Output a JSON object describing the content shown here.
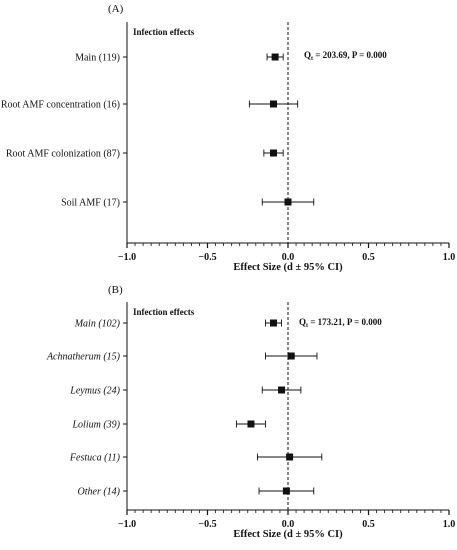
{
  "chart_data": [
    {
      "type": "scatter",
      "panel": "(A)",
      "title": "Infection effects",
      "xlabel": "Effect Size (d ± 95% CI)",
      "xlim": [
        -1.0,
        1.0
      ],
      "xticks": [
        "−1.0",
        "−0.5",
        "0.0",
        "0.5",
        "1.0"
      ],
      "xtick_values": [
        -1.0,
        -0.5,
        0.0,
        0.5,
        1.0
      ],
      "reference_line": 0.0,
      "annotation": {
        "q": "Q",
        "sub": "t",
        "text": " = 203.69, P = 0.000"
      },
      "rows": [
        {
          "label": "Main (119)",
          "italic": false,
          "d": -0.08,
          "lo": -0.13,
          "hi": -0.03
        },
        {
          "label": "Root AMF concentration (16)",
          "italic": false,
          "d": -0.09,
          "lo": -0.24,
          "hi": 0.06
        },
        {
          "label": "Root AMF colonization (87)",
          "italic": false,
          "d": -0.09,
          "lo": -0.15,
          "hi": -0.03
        },
        {
          "label": "Soil AMF (17)",
          "italic": false,
          "d": 0.0,
          "lo": -0.16,
          "hi": 0.16
        }
      ]
    },
    {
      "type": "scatter",
      "panel": "(B)",
      "title": "Infection effects",
      "xlabel": "Effect Size (d ± 95% CI)",
      "xlim": [
        -1.0,
        1.0
      ],
      "xticks": [
        "−1.0",
        "−0.5",
        "0.0",
        "0.5",
        "1.0"
      ],
      "xtick_values": [
        -1.0,
        -0.5,
        0.0,
        0.5,
        1.0
      ],
      "reference_line": 0.0,
      "annotation": {
        "q": "Q",
        "sub": "t",
        "text": " = 173.21, P = 0.000"
      },
      "rows": [
        {
          "label": "Main (102)",
          "italic": true,
          "d": -0.09,
          "lo": -0.14,
          "hi": -0.04
        },
        {
          "label": "Achnatherum (15)",
          "italic": true,
          "d": 0.02,
          "lo": -0.14,
          "hi": 0.18
        },
        {
          "label": "Leymus (24)",
          "italic": true,
          "d": -0.04,
          "lo": -0.16,
          "hi": 0.08
        },
        {
          "label": "Lolium (39)",
          "italic": true,
          "d": -0.23,
          "lo": -0.32,
          "hi": -0.14
        },
        {
          "label": "Festuca (11)",
          "italic": true,
          "d": 0.01,
          "lo": -0.19,
          "hi": 0.21
        },
        {
          "label": "Other (14)",
          "italic": true,
          "d": -0.01,
          "lo": -0.18,
          "hi": 0.16
        }
      ]
    }
  ]
}
